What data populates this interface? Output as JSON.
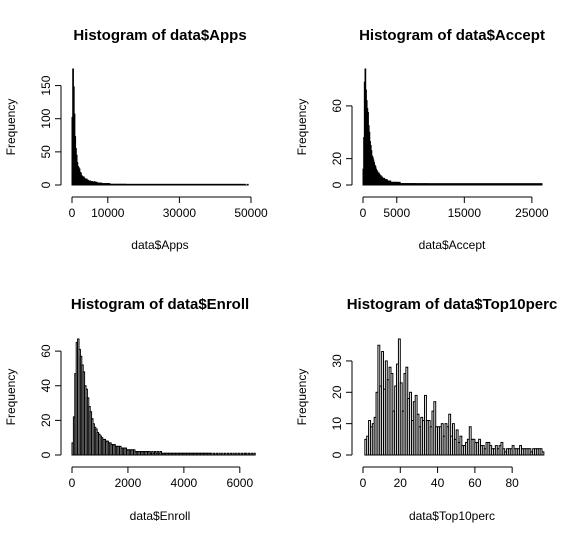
{
  "chart_data": [
    {
      "type": "bar",
      "title": "Histogram of data$Apps",
      "xlabel": "data$Apps",
      "ylabel": "Frequency",
      "bin_start": 0,
      "bin_width": 200,
      "xlim": [
        0,
        50000
      ],
      "ylim": [
        0,
        175
      ],
      "xticks": [
        0,
        10000,
        30000,
        50000
      ],
      "yticks": [
        0,
        50,
        100,
        150
      ],
      "values": [
        102,
        175,
        148,
        107,
        73,
        55,
        45,
        34,
        28,
        26,
        24,
        19,
        18,
        14,
        13,
        12,
        12,
        10,
        9,
        8,
        9,
        7,
        7,
        6,
        6,
        6,
        5,
        5,
        5,
        4,
        4,
        5,
        4,
        4,
        4,
        3,
        3,
        3,
        3,
        2,
        3,
        2,
        2,
        2,
        2,
        2,
        2,
        2,
        2,
        2,
        2,
        2,
        2,
        1,
        1,
        1,
        1,
        1,
        1,
        1,
        1,
        1,
        1,
        1,
        1,
        1,
        1,
        1,
        1,
        1,
        1,
        1,
        1,
        1,
        1,
        1,
        0,
        1,
        0,
        1,
        0,
        1,
        0,
        1,
        0,
        1,
        0,
        1,
        0,
        1,
        0,
        1,
        0,
        1,
        0,
        1,
        0,
        1,
        0,
        1,
        0,
        1,
        0,
        1,
        0,
        1,
        0,
        1,
        0,
        1,
        0,
        1,
        0,
        1,
        0,
        1,
        0,
        1,
        0,
        1,
        0,
        1,
        0,
        1,
        0,
        1,
        0,
        1,
        0,
        1,
        0,
        1,
        0,
        1,
        0,
        1,
        0,
        1,
        0,
        1,
        0,
        1,
        0,
        1,
        0,
        1,
        0,
        1,
        0,
        1,
        0,
        1,
        0,
        1,
        0,
        1,
        0,
        1,
        0,
        1,
        0,
        1,
        0,
        1,
        0,
        1,
        0,
        1,
        0,
        1,
        0,
        1,
        0,
        1,
        0,
        1,
        0,
        1,
        0,
        1,
        0,
        1,
        0,
        1,
        0,
        1,
        0,
        1,
        0,
        1,
        0,
        1,
        0,
        1,
        0,
        1,
        0,
        1,
        0,
        1,
        0,
        1,
        0,
        1,
        0,
        1,
        0,
        1,
        0,
        1,
        0,
        1,
        0,
        1,
        0,
        1,
        0,
        1,
        0,
        1,
        0,
        1,
        0,
        1,
        0,
        1,
        0,
        1,
        0,
        1,
        0,
        1,
        0,
        1,
        0,
        1,
        0,
        1,
        0,
        1,
        0,
        1,
        0,
        0,
        0,
        1
      ]
    },
    {
      "type": "bar",
      "title": "Histogram of data$Accept",
      "xlabel": "data$Accept",
      "ylabel": "Frequency",
      "bin_start": 0,
      "bin_width": 100,
      "xlim": [
        0,
        26500
      ],
      "ylim": [
        0,
        88
      ],
      "xticks": [
        0,
        5000,
        15000,
        25000
      ],
      "yticks": [
        0,
        20,
        60
      ],
      "values": [
        12,
        36,
        78,
        88,
        72,
        64,
        58,
        55,
        45,
        40,
        33,
        30,
        26,
        22,
        21,
        19,
        17,
        15,
        14,
        12,
        11,
        10,
        9,
        9,
        8,
        7,
        7,
        6,
        6,
        5,
        5,
        5,
        4,
        4,
        4,
        4,
        3,
        3,
        3,
        3,
        3,
        2,
        2,
        2,
        2,
        2,
        2,
        2,
        2,
        2,
        2,
        1,
        2,
        1,
        2,
        1,
        1,
        1,
        1,
        1,
        1,
        1,
        1,
        1,
        1,
        1,
        1,
        1,
        1,
        1,
        1,
        1,
        1,
        1,
        1,
        1,
        1,
        1,
        1,
        1,
        0,
        1,
        1,
        0,
        1,
        1,
        0,
        1,
        1,
        0,
        1,
        1,
        0,
        1,
        1,
        0,
        1,
        0,
        1,
        0,
        1,
        0,
        1,
        0,
        1,
        0,
        1,
        0,
        1,
        0,
        1,
        0,
        1,
        0,
        1,
        0,
        1,
        0,
        1,
        0,
        1,
        0,
        1,
        0,
        1,
        0,
        1,
        0,
        1,
        0,
        1,
        0,
        1,
        0,
        1,
        0,
        1,
        0,
        1,
        0,
        1,
        0,
        1,
        0,
        1,
        0,
        1,
        0,
        1,
        0,
        1,
        0,
        1,
        0,
        1,
        0,
        1,
        0,
        1,
        0,
        1,
        0,
        1,
        0,
        1,
        0,
        1,
        0,
        1,
        0,
        1,
        0,
        1,
        0,
        1,
        0,
        1,
        0,
        1,
        0,
        1,
        0,
        1,
        0,
        1,
        0,
        1,
        0,
        1,
        0,
        1,
        0,
        1,
        0,
        1,
        0,
        1,
        0,
        1,
        0,
        1,
        0,
        1,
        0,
        1,
        0,
        1,
        0,
        1,
        0,
        1,
        0,
        1,
        0,
        1,
        0,
        1,
        0,
        1,
        0,
        1,
        0,
        1,
        0,
        1,
        0,
        1,
        0,
        1,
        0,
        1,
        0,
        1,
        0,
        1,
        0,
        1,
        0,
        1,
        0,
        1,
        0,
        1,
        0,
        1,
        0,
        1,
        0,
        1,
        0,
        1,
        0,
        1,
        0,
        1,
        0,
        1,
        0,
        1,
        0,
        1,
        0,
        1,
        0,
        1
      ]
    },
    {
      "type": "bar",
      "title": "Histogram of data$Enroll",
      "xlabel": "data$Enroll",
      "ylabel": "Frequency",
      "bin_start": 0,
      "bin_width": 50,
      "xlim": [
        0,
        6400
      ],
      "ylim": [
        0,
        67
      ],
      "xticks": [
        0,
        2000,
        4000,
        6000
      ],
      "yticks": [
        0,
        20,
        40,
        60
      ],
      "values": [
        7,
        22,
        47,
        65,
        67,
        61,
        57,
        52,
        48,
        40,
        38,
        33,
        28,
        25,
        21,
        18,
        16,
        15,
        13,
        12,
        11,
        10,
        9,
        9,
        8,
        8,
        7,
        7,
        6,
        6,
        6,
        5,
        5,
        5,
        5,
        4,
        4,
        4,
        4,
        3,
        3,
        3,
        3,
        3,
        3,
        2,
        2,
        2,
        2,
        2,
        2,
        2,
        2,
        2,
        2,
        2,
        1,
        2,
        1,
        2,
        1,
        2,
        1,
        2,
        1,
        1,
        1,
        1,
        1,
        1,
        1,
        1,
        1,
        1,
        1,
        1,
        1,
        1,
        1,
        1,
        1,
        1,
        1,
        1,
        1,
        1,
        1,
        1,
        1,
        1,
        1,
        1,
        1,
        1,
        1,
        1,
        1,
        1,
        1,
        1,
        0,
        1,
        0,
        1,
        0,
        1,
        0,
        1,
        0,
        1,
        0,
        1,
        0,
        1,
        0,
        1,
        0,
        1,
        0,
        1,
        0,
        1,
        0,
        1,
        1,
        0,
        1,
        0,
        1,
        0,
        1
      ]
    },
    {
      "type": "bar",
      "title": "Histogram of data$Top10perc",
      "xlabel": "data$Top10perc",
      "ylabel": "Frequency",
      "bin_start": 1,
      "bin_width": 1,
      "xlim": [
        0,
        96
      ],
      "ylim": [
        0,
        37
      ],
      "xticks": [
        0,
        20,
        40,
        60,
        80
      ],
      "yticks": [
        0,
        10,
        20,
        30
      ],
      "values": [
        5,
        6,
        11,
        9,
        10,
        12,
        20,
        35,
        22,
        33,
        21,
        30,
        24,
        28,
        26,
        14,
        22,
        29,
        37,
        23,
        14,
        26,
        28,
        18,
        20,
        11,
        17,
        19,
        13,
        9,
        12,
        11,
        19,
        11,
        11,
        9,
        14,
        17,
        9,
        9,
        9,
        10,
        6,
        10,
        9,
        13,
        6,
        10,
        5,
        8,
        4,
        6,
        3,
        3,
        4,
        5,
        9,
        5,
        5,
        4,
        4,
        5,
        3,
        3,
        2,
        4,
        4,
        3,
        2,
        2,
        3,
        2,
        3,
        4,
        2,
        1,
        2,
        2,
        2,
        3,
        2,
        2,
        2,
        3,
        2,
        2,
        2,
        2,
        2,
        1,
        2,
        2,
        2,
        2,
        2,
        1
      ]
    }
  ]
}
